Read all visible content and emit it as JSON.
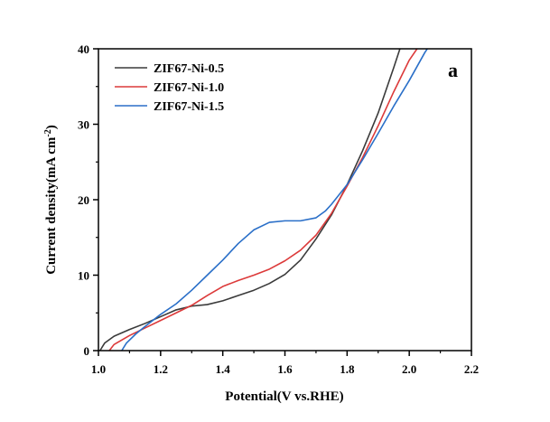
{
  "chart_data": {
    "type": "line",
    "title": "",
    "panel_label": "a",
    "xlabel": "Potential(V vs.RHE)",
    "ylabel_main": "Current density(mA cm",
    "ylabel_sup": "-2",
    "ylabel_close": ")",
    "xlim": [
      1.0,
      2.2
    ],
    "ylim": [
      0,
      40
    ],
    "x_ticks": [
      1.0,
      1.2,
      1.4,
      1.6,
      1.8,
      2.0,
      2.2
    ],
    "x_tick_labels": [
      "1.0",
      "1.2",
      "1.4",
      "1.6",
      "1.8",
      "2.0",
      "2.2"
    ],
    "y_ticks": [
      0,
      10,
      20,
      30,
      40
    ],
    "y_tick_labels": [
      "0",
      "10",
      "20",
      "30",
      "40"
    ],
    "grid": false,
    "legend_position": "top-left",
    "series": [
      {
        "name": "ZIF67-Ni-0.5",
        "color": "#3a3a3a",
        "points": [
          [
            1.005,
            0.0
          ],
          [
            1.02,
            1.0
          ],
          [
            1.05,
            1.9
          ],
          [
            1.1,
            2.8
          ],
          [
            1.15,
            3.6
          ],
          [
            1.2,
            4.5
          ],
          [
            1.25,
            5.4
          ],
          [
            1.3,
            5.9
          ],
          [
            1.35,
            6.1
          ],
          [
            1.4,
            6.6
          ],
          [
            1.45,
            7.3
          ],
          [
            1.5,
            8.0
          ],
          [
            1.55,
            8.9
          ],
          [
            1.6,
            10.1
          ],
          [
            1.65,
            12.0
          ],
          [
            1.7,
            14.8
          ],
          [
            1.75,
            18.0
          ],
          [
            1.8,
            22.0
          ],
          [
            1.85,
            26.5
          ],
          [
            1.9,
            31.5
          ],
          [
            1.95,
            37.5
          ],
          [
            1.97,
            40.0
          ]
        ]
      },
      {
        "name": "ZIF67-Ni-1.0",
        "color": "#dc3a3a",
        "points": [
          [
            1.035,
            0.0
          ],
          [
            1.05,
            0.8
          ],
          [
            1.1,
            2.0
          ],
          [
            1.15,
            3.0
          ],
          [
            1.2,
            4.0
          ],
          [
            1.25,
            5.0
          ],
          [
            1.3,
            6.0
          ],
          [
            1.35,
            7.3
          ],
          [
            1.4,
            8.5
          ],
          [
            1.45,
            9.3
          ],
          [
            1.5,
            10.0
          ],
          [
            1.55,
            10.8
          ],
          [
            1.6,
            11.9
          ],
          [
            1.65,
            13.3
          ],
          [
            1.7,
            15.3
          ],
          [
            1.75,
            18.2
          ],
          [
            1.8,
            21.8
          ],
          [
            1.85,
            25.6
          ],
          [
            1.9,
            29.8
          ],
          [
            1.95,
            34.3
          ],
          [
            2.0,
            38.5
          ],
          [
            2.025,
            40.0
          ]
        ]
      },
      {
        "name": "ZIF67-Ni-1.5",
        "color": "#2a6fc8",
        "points": [
          [
            1.075,
            0.0
          ],
          [
            1.09,
            1.0
          ],
          [
            1.12,
            2.2
          ],
          [
            1.15,
            3.2
          ],
          [
            1.2,
            4.8
          ],
          [
            1.25,
            6.2
          ],
          [
            1.3,
            8.0
          ],
          [
            1.35,
            10.0
          ],
          [
            1.4,
            12.0
          ],
          [
            1.45,
            14.2
          ],
          [
            1.5,
            16.0
          ],
          [
            1.55,
            17.0
          ],
          [
            1.6,
            17.2
          ],
          [
            1.65,
            17.2
          ],
          [
            1.7,
            17.6
          ],
          [
            1.73,
            18.5
          ],
          [
            1.75,
            19.4
          ],
          [
            1.8,
            22.0
          ],
          [
            1.85,
            25.3
          ],
          [
            1.9,
            28.8
          ],
          [
            1.95,
            32.4
          ],
          [
            2.0,
            35.8
          ],
          [
            2.05,
            39.5
          ],
          [
            2.058,
            40.0
          ]
        ]
      }
    ]
  }
}
